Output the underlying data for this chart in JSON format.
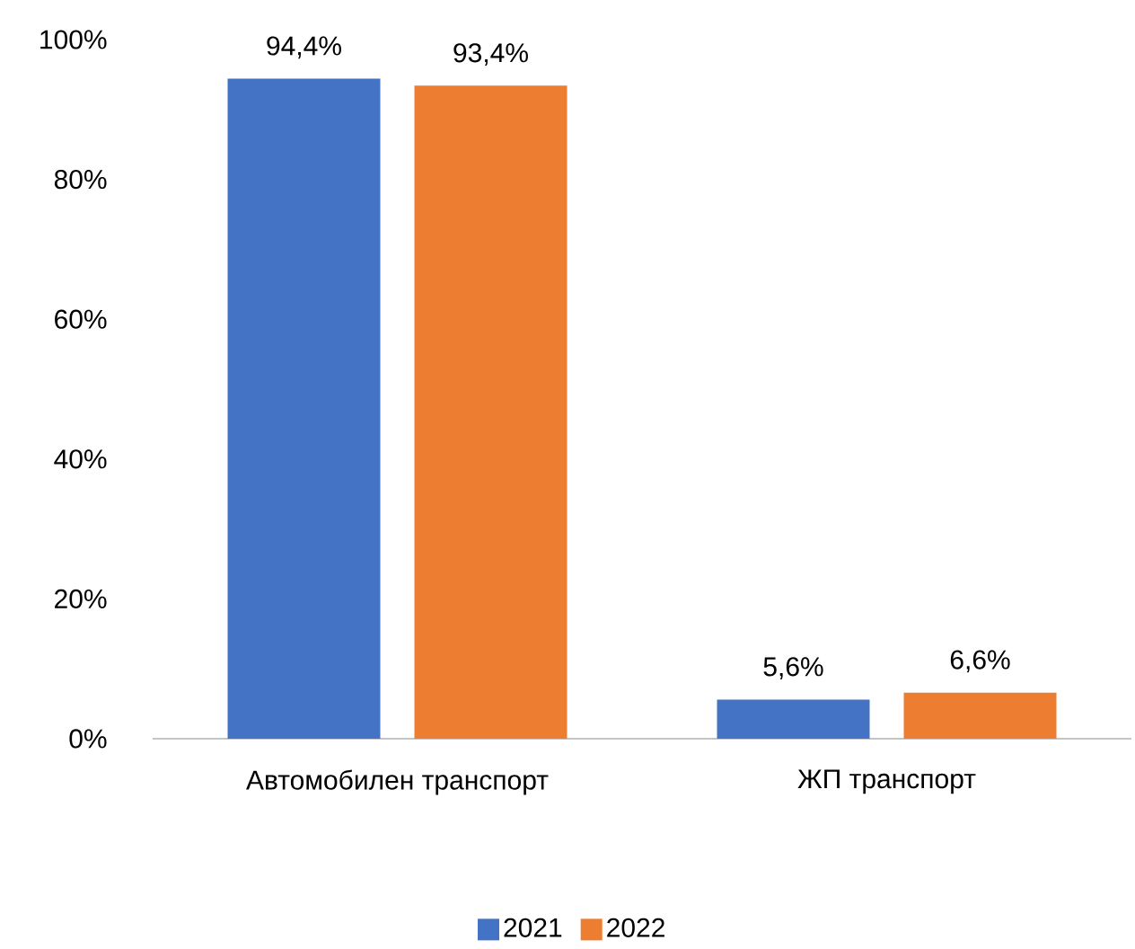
{
  "chart_data": {
    "type": "bar",
    "categories": [
      "Автомобилен транспорт",
      "ЖП транспорт"
    ],
    "series": [
      {
        "name": "2021",
        "color": "#4472c4",
        "values": [
          94.4,
          5.6
        ],
        "value_labels": [
          "94,4%",
          "5,6%"
        ]
      },
      {
        "name": "2022",
        "color": "#ed7d31",
        "values": [
          93.4,
          6.6
        ],
        "value_labels": [
          "93,4%",
          "6,6%"
        ]
      }
    ],
    "ylim": [
      0,
      100
    ],
    "yticks": [
      {
        "value": 0,
        "label": "0%"
      },
      {
        "value": 20,
        "label": "20%"
      },
      {
        "value": 40,
        "label": "40%"
      },
      {
        "value": 60,
        "label": "60%"
      },
      {
        "value": 80,
        "label": "80%"
      },
      {
        "value": 100,
        "label": "100%"
      }
    ],
    "grid": false,
    "legend": "bottom"
  }
}
